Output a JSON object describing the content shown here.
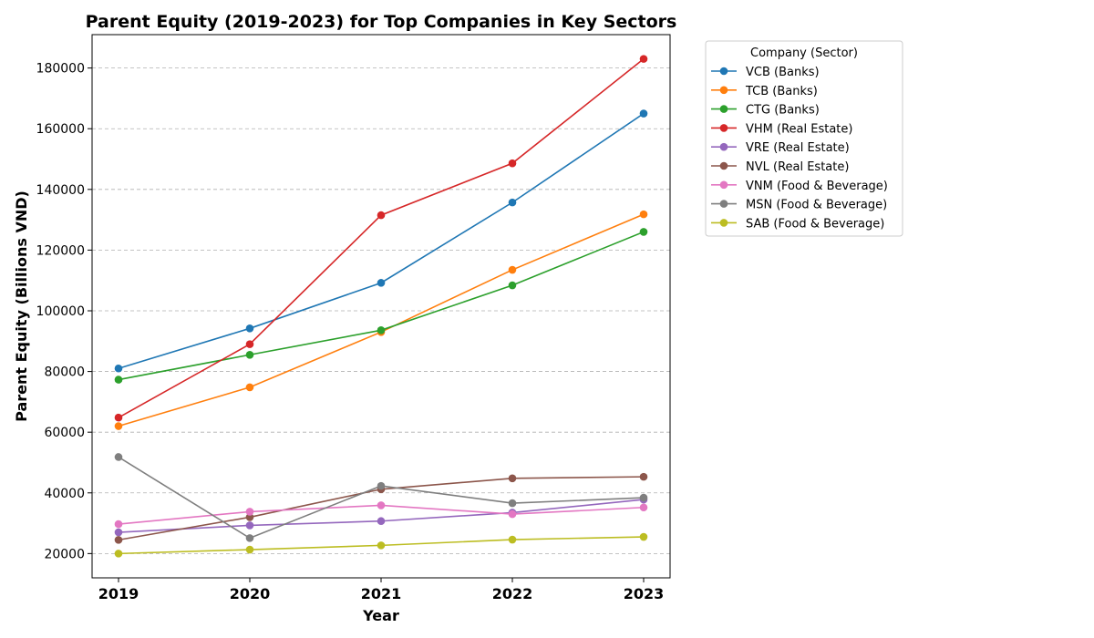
{
  "chart_data": {
    "type": "line",
    "title": "Parent Equity (2019-2023) for Top Companies in Key Sectors",
    "xlabel": "Year",
    "ylabel": "Parent Equity (Billions VND)",
    "x": [
      "2019",
      "2020",
      "2021",
      "2022",
      "2023"
    ],
    "ylim": [
      12000,
      191000
    ],
    "yticks": [
      20000,
      40000,
      60000,
      80000,
      100000,
      120000,
      140000,
      160000,
      180000
    ],
    "ytick_labels": [
      "20000",
      "40000",
      "60000",
      "80000",
      "100000",
      "120000",
      "140000",
      "160000",
      "180000"
    ],
    "grid": "y-dashed",
    "legend_title": "Company (Sector)",
    "legend_position": "outside-right",
    "series": [
      {
        "name": "VCB (Banks)",
        "color": "#1f77b4",
        "values": [
          81000,
          94200,
          109200,
          135700,
          165000
        ]
      },
      {
        "name": "TCB (Banks)",
        "color": "#ff7f0e",
        "values": [
          62000,
          74800,
          93000,
          113500,
          131800
        ]
      },
      {
        "name": "CTG (Banks)",
        "color": "#2ca02c",
        "values": [
          77300,
          85500,
          93600,
          108400,
          126000
        ]
      },
      {
        "name": "VHM (Real Estate)",
        "color": "#d62728",
        "values": [
          64800,
          89000,
          131500,
          148600,
          183000
        ]
      },
      {
        "name": "VRE (Real Estate)",
        "color": "#9467bd",
        "values": [
          27000,
          29300,
          30700,
          33500,
          37800
        ]
      },
      {
        "name": "NVL (Real Estate)",
        "color": "#8c564b",
        "values": [
          24500,
          32000,
          41200,
          44800,
          45300
        ]
      },
      {
        "name": "VNM (Food & Beverage)",
        "color": "#e377c2",
        "values": [
          29700,
          33800,
          35900,
          33000,
          35200
        ]
      },
      {
        "name": "MSN (Food & Beverage)",
        "color": "#7f7f7f",
        "values": [
          51800,
          25100,
          42300,
          36600,
          38400
        ]
      },
      {
        "name": "SAB (Food & Beverage)",
        "color": "#bcbd22",
        "values": [
          20000,
          21300,
          22700,
          24600,
          25500
        ]
      }
    ]
  }
}
